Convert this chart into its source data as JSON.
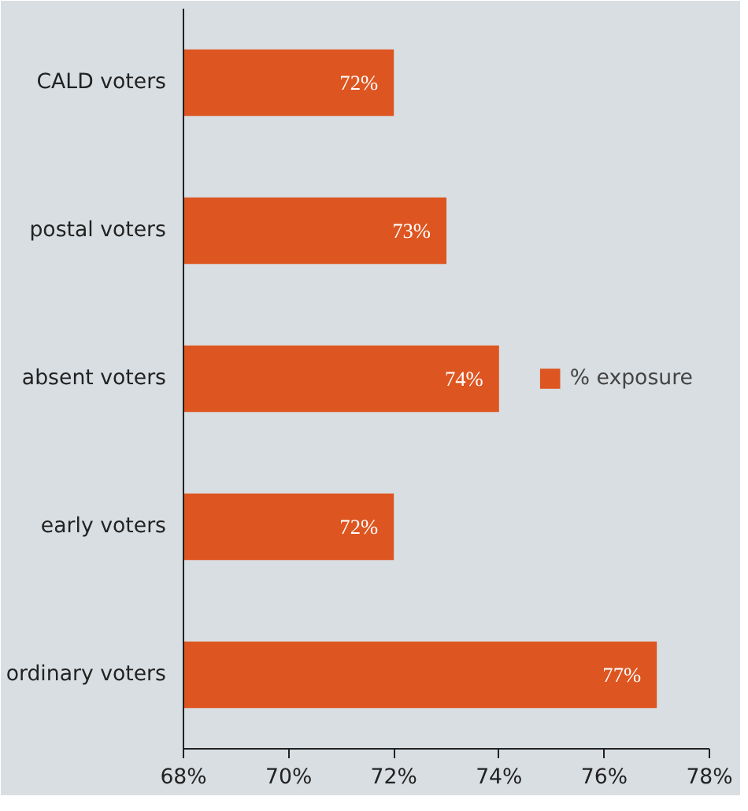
{
  "chart_data": {
    "type": "bar",
    "orientation": "horizontal",
    "categories": [
      "CALD voters",
      "postal voters",
      "absent voters",
      "early voters",
      "ordinary voters"
    ],
    "series": [
      {
        "name": "% exposure",
        "color": "#dd5520",
        "values": [
          72,
          73,
          74,
          72,
          77
        ],
        "value_labels": [
          "72%",
          "73%",
          "74%",
          "72%",
          "77%"
        ]
      }
    ],
    "xlim": [
      68,
      78
    ],
    "xticks": [
      {
        "value": 68,
        "label": "68%"
      },
      {
        "value": 70,
        "label": "70%"
      },
      {
        "value": 72,
        "label": "72%"
      },
      {
        "value": 74,
        "label": "74%"
      },
      {
        "value": 76,
        "label": "76%"
      },
      {
        "value": 78,
        "label": "78%"
      }
    ],
    "grid": false,
    "legend": "right"
  }
}
